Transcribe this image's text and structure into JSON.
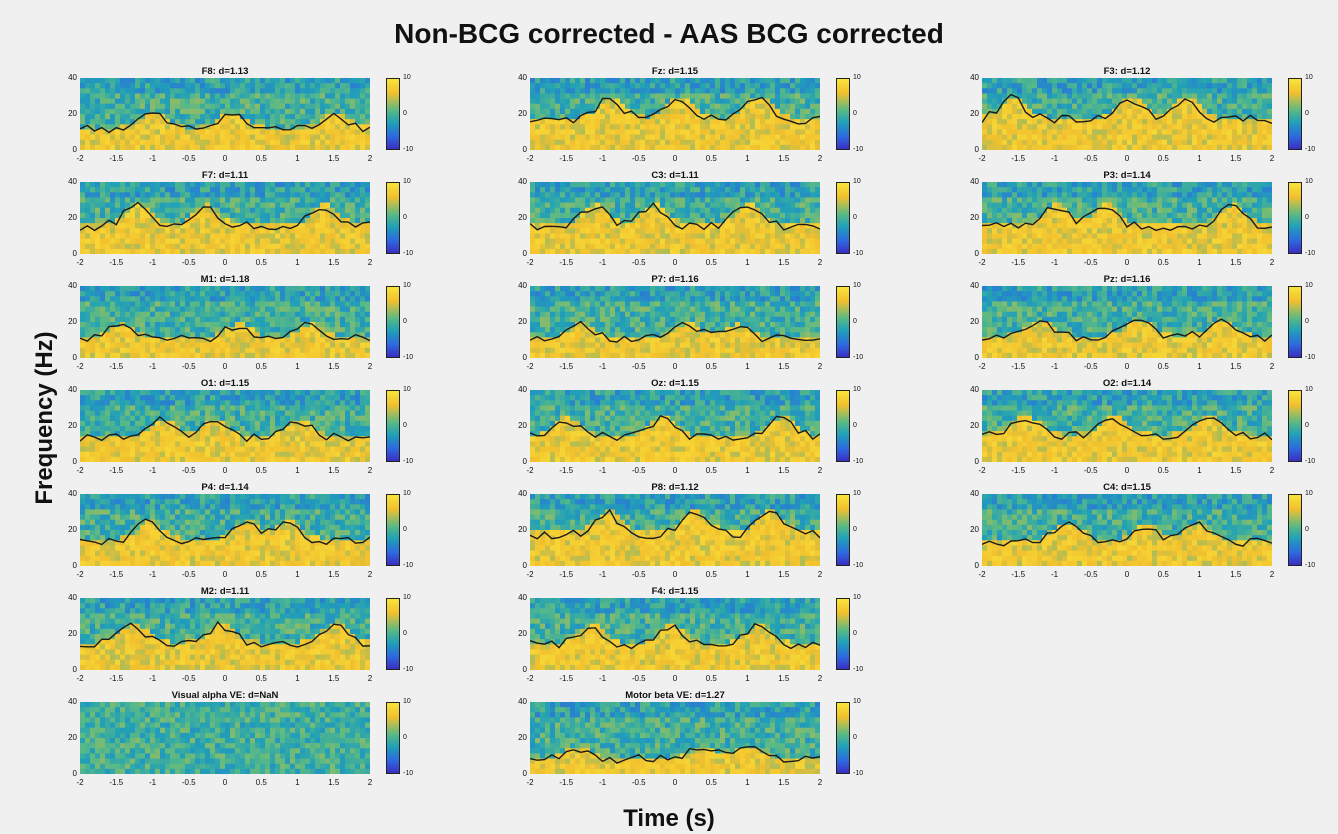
{
  "chart_data": {
    "type": "heatmap",
    "title": "Non-BCG corrected - AAS BCG corrected",
    "xlabel": "Time (s)",
    "ylabel": "Frequency (Hz)",
    "x_ticks": [
      "-2",
      "-1.5",
      "-1",
      "-0.5",
      "0",
      "0.5",
      "1",
      "1.5",
      "2"
    ],
    "y_ticks": [
      "0",
      "20",
      "40"
    ],
    "colorbar_ticks": [
      "10",
      "0",
      "-10"
    ],
    "xlim": [
      -2,
      2
    ],
    "ylim": [
      0,
      40
    ],
    "clim": [
      -10,
      10
    ],
    "panels": [
      {
        "label": "F8: d=1.13",
        "hf": 0.42,
        "col": 0,
        "row": 0
      },
      {
        "label": "F7: d=1.11",
        "hf": 0.55,
        "col": 0,
        "row": 1
      },
      {
        "label": "M1: d=1.18",
        "hf": 0.38,
        "col": 0,
        "row": 2
      },
      {
        "label": "O1: d=1.15",
        "hf": 0.48,
        "col": 0,
        "row": 3
      },
      {
        "label": "P4: d=1.14",
        "hf": 0.5,
        "col": 0,
        "row": 4
      },
      {
        "label": "M2: d=1.11",
        "hf": 0.52,
        "col": 0,
        "row": 5
      },
      {
        "label": "Visual alpha VE: d=NaN",
        "hf": 0.0,
        "col": 0,
        "row": 6
      },
      {
        "label": "Fz: d=1.15",
        "hf": 0.6,
        "col": 1,
        "row": 0
      },
      {
        "label": "C3: d=1.11",
        "hf": 0.55,
        "col": 1,
        "row": 1
      },
      {
        "label": "P7: d=1.16",
        "hf": 0.38,
        "col": 1,
        "row": 2
      },
      {
        "label": "Oz: d=1.15",
        "hf": 0.5,
        "col": 1,
        "row": 3
      },
      {
        "label": "P8: d=1.12",
        "hf": 0.62,
        "col": 1,
        "row": 4
      },
      {
        "label": "F4: d=1.15",
        "hf": 0.5,
        "col": 1,
        "row": 5
      },
      {
        "label": "Motor beta VE: d=1.27",
        "hf": 0.3,
        "col": 1,
        "row": 6
      },
      {
        "label": "F3: d=1.12",
        "hf": 0.6,
        "col": 2,
        "row": 0
      },
      {
        "label": "P3: d=1.14",
        "hf": 0.55,
        "col": 2,
        "row": 1
      },
      {
        "label": "Pz: d=1.16",
        "hf": 0.42,
        "col": 2,
        "row": 2
      },
      {
        "label": "O2: d=1.14",
        "hf": 0.52,
        "col": 2,
        "row": 3
      },
      {
        "label": "C4: d=1.15",
        "hf": 0.48,
        "col": 2,
        "row": 4
      }
    ]
  }
}
